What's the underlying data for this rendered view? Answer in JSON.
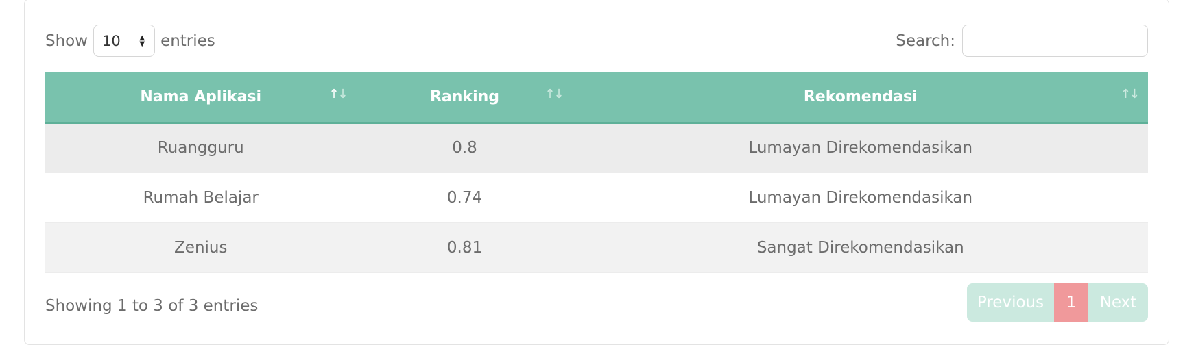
{
  "length_menu": {
    "prefix": "Show",
    "selected": "10",
    "suffix": "entries"
  },
  "search": {
    "label": "Search:",
    "value": "",
    "placeholder": ""
  },
  "table": {
    "columns": [
      {
        "label": "Nama Aplikasi",
        "sort": "active"
      },
      {
        "label": "Ranking",
        "sort": "inactive"
      },
      {
        "label": "Rekomendasi",
        "sort": "inactive"
      }
    ],
    "rows": [
      {
        "nama": "Ruangguru",
        "ranking": "0.8",
        "rekomendasi": "Lumayan Direkomendasikan"
      },
      {
        "nama": "Rumah Belajar",
        "ranking": "0.74",
        "rekomendasi": "Lumayan Direkomendasikan"
      },
      {
        "nama": "Zenius",
        "ranking": "0.81",
        "rekomendasi": "Sangat Direkomendasikan"
      }
    ]
  },
  "info": "Showing 1 to 3 of 3 entries",
  "pagination": {
    "previous": "Previous",
    "current": "1",
    "next": "Next"
  },
  "colors": {
    "header": "#79c2ad",
    "pagination_active": "#f0999b",
    "pagination_disabled": "#cbe9df"
  }
}
